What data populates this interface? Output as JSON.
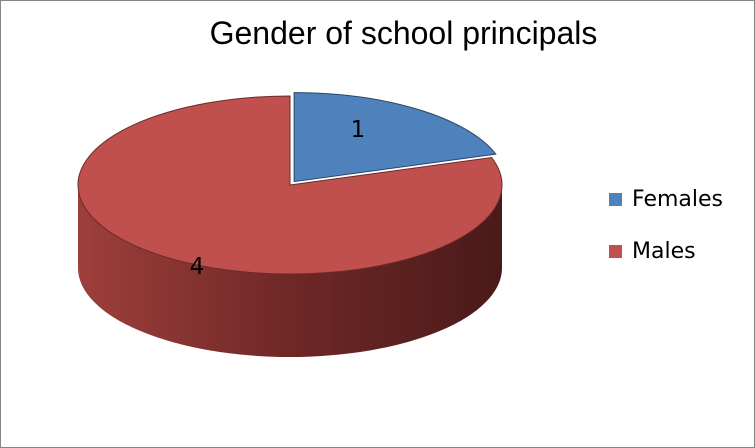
{
  "chart_data": {
    "type": "pie",
    "title": "Gender of school principals",
    "slices": [
      {
        "label": "Females",
        "value": 1,
        "data_label": "1",
        "color": "#4F81BD"
      },
      {
        "label": "Males",
        "value": 4,
        "data_label": "4",
        "color": "#C0504D"
      }
    ],
    "legend_position": "right",
    "style": "3d"
  }
}
